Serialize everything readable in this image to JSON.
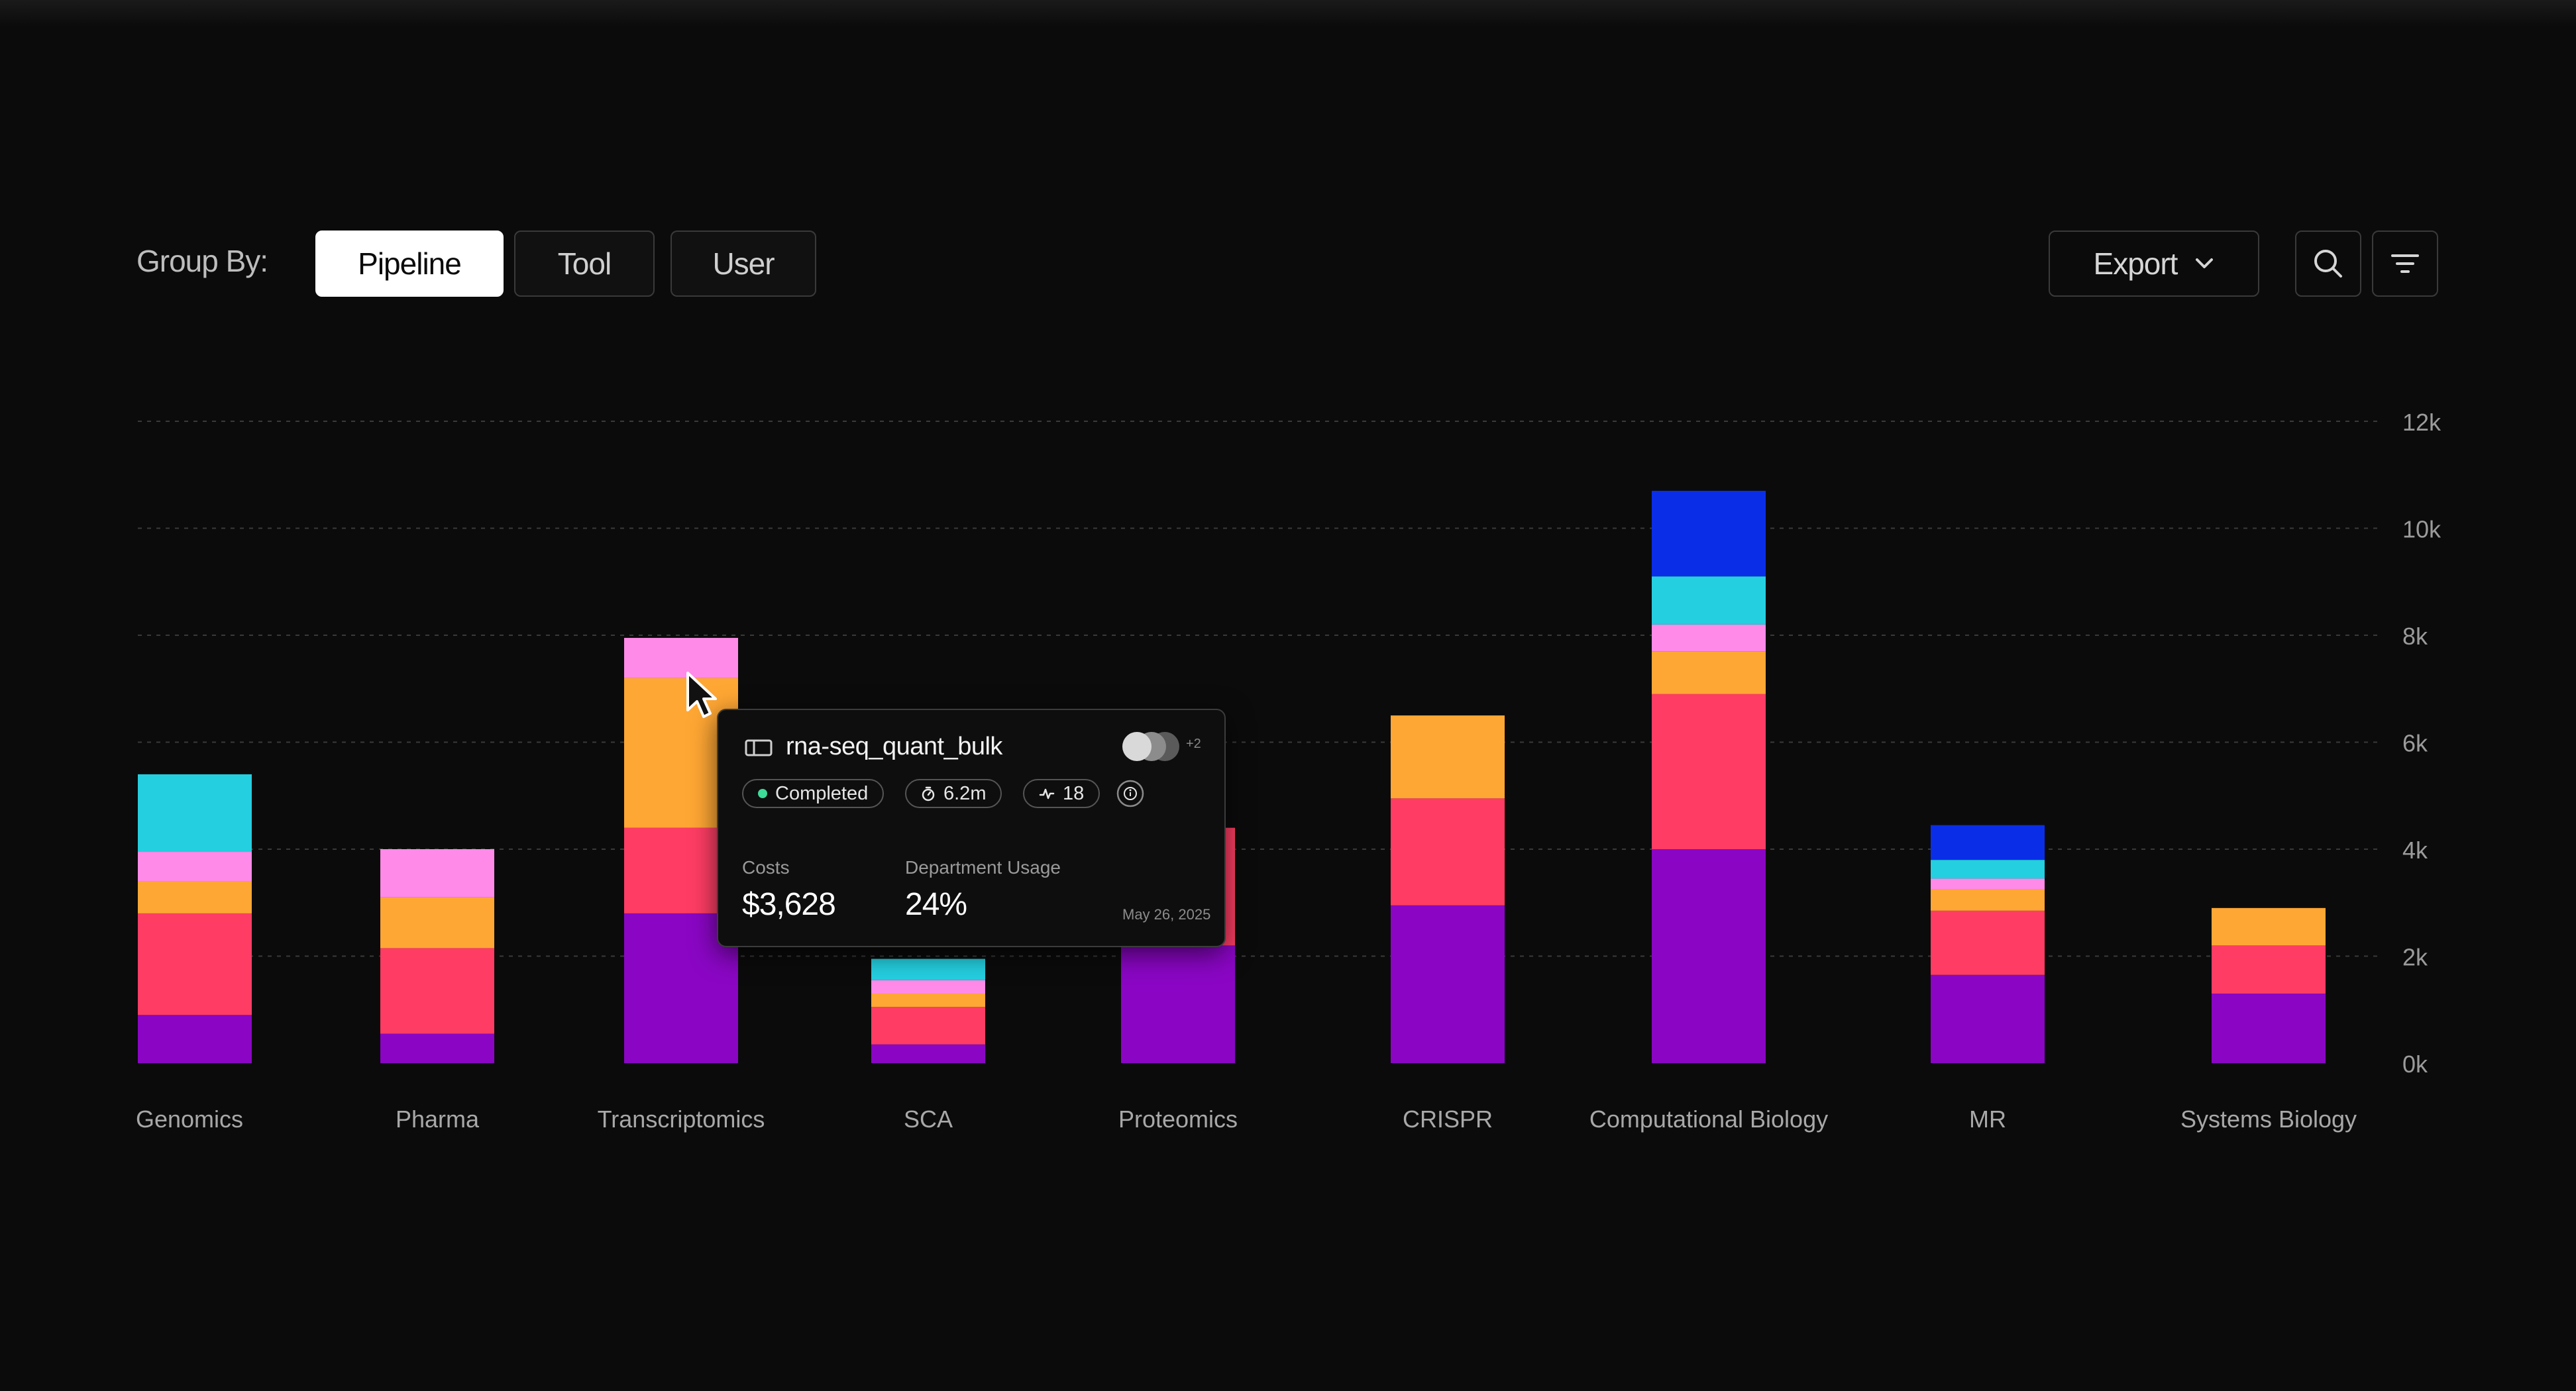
{
  "toolbar": {
    "group_by_label": "Group By:",
    "options": [
      "Pipeline",
      "Tool",
      "User"
    ],
    "selected": "Pipeline",
    "export_label": "Export"
  },
  "icons": {
    "search": "search-icon",
    "filter": "filter-icon",
    "export_chevron": "chevron-down-icon",
    "pipeline": "pipeline-icon",
    "timer": "timer-icon",
    "activity": "activity-icon",
    "info": "info-icon",
    "cursor": "cursor-icon"
  },
  "colors": {
    "background": "#0b0b0b",
    "series": [
      "#8a06c4",
      "#ff3d64",
      "#ffa734",
      "#ff8ae8",
      "#24cfe0",
      "#0a2ee8"
    ],
    "status_dot": "#3ddc97"
  },
  "tooltip": {
    "name": "rna-seq_quant_bulk",
    "plus_count": "+2",
    "status": "Completed",
    "duration": "6.2m",
    "steps": "18",
    "costs_label": "Costs",
    "costs_value": "$3,628",
    "usage_label": "Department Usage",
    "usage_value": "24%",
    "date": "May 26, 2025"
  },
  "chart_data": {
    "type": "bar",
    "stacked": true,
    "categories": [
      "Genomics",
      "Pharma",
      "Transcriptomics",
      "SCA",
      "Proteomics",
      "CRISPR",
      "Computational Biology",
      "MR",
      "Systems Biology"
    ],
    "series": [
      {
        "color": "#8a06c4",
        "values": [
          900,
          550,
          2800,
          350,
          2200,
          2950,
          4000,
          1650,
          1300
        ]
      },
      {
        "color": "#ff3d64",
        "values": [
          1900,
          1600,
          1600,
          700,
          2200,
          2000,
          2900,
          1200,
          900
        ]
      },
      {
        "color": "#ffa734",
        "values": [
          600,
          950,
          2800,
          250,
          0,
          1550,
          800,
          400,
          700
        ]
      },
      {
        "color": "#ff8ae8",
        "values": [
          550,
          900,
          750,
          250,
          0,
          0,
          500,
          200,
          0
        ]
      },
      {
        "color": "#24cfe0",
        "values": [
          1450,
          0,
          0,
          400,
          0,
          0,
          900,
          350,
          0
        ]
      },
      {
        "color": "#0a2ee8",
        "values": [
          0,
          0,
          0,
          0,
          0,
          0,
          1600,
          650,
          0
        ]
      }
    ],
    "y_ticks": [
      "0k",
      "2k",
      "4k",
      "6k",
      "8k",
      "10k",
      "12k"
    ],
    "ylim": [
      0,
      12000
    ],
    "grid": true,
    "y_axis_position": "right"
  }
}
